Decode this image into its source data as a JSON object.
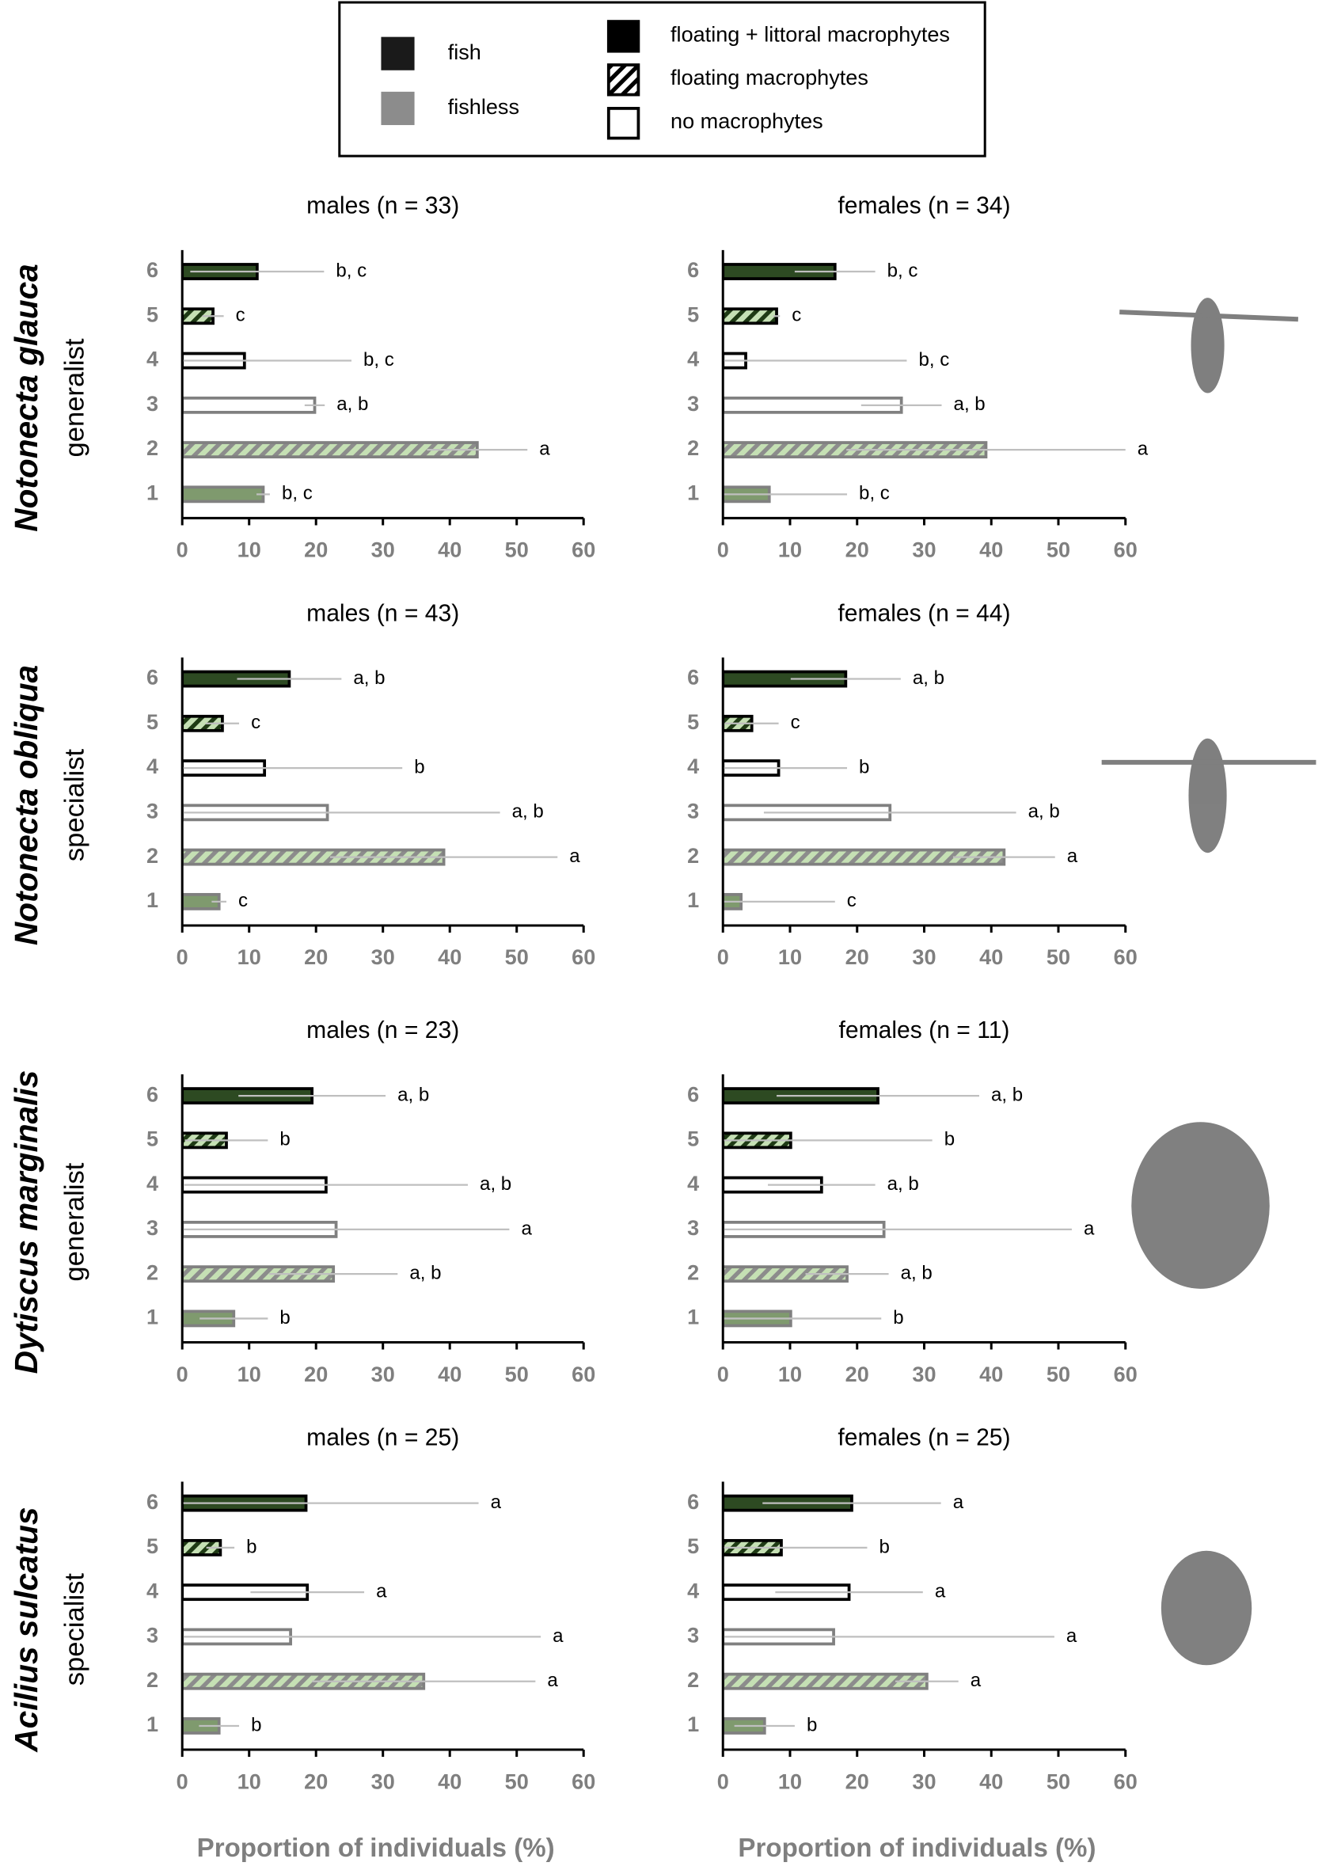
{
  "legend": {
    "predation": [
      {
        "label": "fish",
        "color": "#1a1a1a"
      },
      {
        "label": "fishless",
        "color": "#8c8c8c"
      }
    ],
    "habitat": [
      {
        "label": "floating + littoral macrophytes",
        "fill": "#000000"
      },
      {
        "label": "floating macrophytes",
        "fill": "#ffffff",
        "hatch": "#000000"
      },
      {
        "label": "no macrophytes",
        "fill": "#ffffff"
      }
    ]
  },
  "rows": [
    {
      "species": "Notonecta glauca",
      "guild": "generalist"
    },
    {
      "species": "Notonecta obliqua",
      "guild": "specialist"
    },
    {
      "species": "Dytiscus marginalis",
      "guild": "generalist"
    },
    {
      "species": "Acilius sulcatus",
      "guild": "specialist"
    }
  ],
  "category_styles": [
    {
      "fill": "#7f9a6e",
      "stroke": "#808080"
    },
    {
      "fill": "#c5e0b4",
      "stroke": "#808080",
      "hatch": "#8c8c8c"
    },
    {
      "fill": "#ffffff",
      "stroke": "#808080"
    },
    {
      "fill": "#ffffff",
      "stroke": "#000000"
    },
    {
      "fill": "#c5e0b4",
      "stroke": "#000000",
      "hatch": "#1e3a14"
    },
    {
      "fill": "#2d4a22",
      "stroke": "#000000"
    }
  ],
  "error_color": "#bfbfbf",
  "chart_data": [
    {
      "type": "bar",
      "title": "males (n = 33)",
      "categories": [
        "1",
        "2",
        "3",
        "4",
        "5",
        "6"
      ],
      "values": [
        12.1,
        44.1,
        19.8,
        9.3,
        4.6,
        11.2
      ],
      "errors": [
        1,
        7.5,
        1.5,
        16,
        1.6,
        10
      ],
      "annotations": [
        "b, c",
        "a",
        "a, b",
        "b, c",
        "c",
        "b, c"
      ],
      "xlim": [
        0,
        60
      ],
      "xticks": [
        0,
        10,
        20,
        30,
        40,
        50,
        60
      ]
    },
    {
      "type": "bar",
      "title": "females (n = 34)",
      "categories": [
        "1",
        "2",
        "3",
        "4",
        "5",
        "6"
      ],
      "values": [
        6.9,
        39.2,
        26.6,
        3.4,
        8.0,
        16.7
      ],
      "errors": [
        11.6,
        20.8,
        6,
        24,
        0.5,
        6
      ],
      "annotations": [
        "b, c",
        "a",
        "a, b",
        "b, c",
        "c",
        "b, c"
      ],
      "xlim": [
        0,
        60
      ],
      "xticks": [
        0,
        10,
        20,
        30,
        40,
        50,
        60
      ]
    },
    {
      "type": "bar",
      "title": "males (n = 43)",
      "categories": [
        "1",
        "2",
        "3",
        "4",
        "5",
        "6"
      ],
      "values": [
        5.5,
        39.1,
        21.7,
        12.3,
        6.0,
        16.0
      ],
      "errors": [
        1.1,
        17,
        25.8,
        20.6,
        2.5,
        7.8
      ],
      "annotations": [
        "c",
        "a",
        "a, b",
        "b",
        "c",
        "a, b"
      ],
      "xlim": [
        0,
        60
      ],
      "xticks": [
        0,
        10,
        20,
        30,
        40,
        50,
        60
      ]
    },
    {
      "type": "bar",
      "title": "females (n = 44)",
      "categories": [
        "1",
        "2",
        "3",
        "4",
        "5",
        "6"
      ],
      "values": [
        2.7,
        41.9,
        24.9,
        8.3,
        4.3,
        18.3
      ],
      "errors": [
        14,
        7.6,
        18.8,
        10.2,
        4,
        8.2
      ],
      "annotations": [
        "c",
        "a",
        "a, b",
        "b",
        "c",
        "a, b"
      ],
      "xlim": [
        0,
        60
      ],
      "xticks": [
        0,
        10,
        20,
        30,
        40,
        50,
        60
      ]
    },
    {
      "type": "bar",
      "title": "males (n = 23)",
      "categories": [
        "1",
        "2",
        "3",
        "4",
        "5",
        "6"
      ],
      "values": [
        7.7,
        22.6,
        23.0,
        21.5,
        6.6,
        19.4
      ],
      "errors": [
        5.1,
        9.6,
        25.9,
        21.2,
        6.2,
        11
      ],
      "annotations": [
        "b",
        "a, b",
        "a",
        "a, b",
        "b",
        "a, b"
      ],
      "xlim": [
        0,
        60
      ],
      "xticks": [
        0,
        10,
        20,
        30,
        40,
        50,
        60
      ]
    },
    {
      "type": "bar",
      "title": "females (n = 11)",
      "categories": [
        "1",
        "2",
        "3",
        "4",
        "5",
        "6"
      ],
      "values": [
        10.1,
        18.5,
        24.0,
        14.7,
        10.1,
        23.1
      ],
      "errors": [
        13.5,
        6.2,
        28,
        8,
        21.1,
        15.1
      ],
      "annotations": [
        "b",
        "a, b",
        "a",
        "a, b",
        "b",
        "a, b"
      ],
      "xlim": [
        0,
        60
      ],
      "xticks": [
        0,
        10,
        20,
        30,
        40,
        50,
        60
      ]
    },
    {
      "type": "bar",
      "title": "males (n = 25)",
      "categories": [
        "1",
        "2",
        "3",
        "4",
        "5",
        "6"
      ],
      "values": [
        5.5,
        36.1,
        16.2,
        18.7,
        5.7,
        18.5
      ],
      "errors": [
        3,
        16.7,
        37.4,
        8.5,
        2.1,
        25.8
      ],
      "annotations": [
        "b",
        "a",
        "a",
        "a",
        "b",
        "a"
      ],
      "xlim": [
        0,
        60
      ],
      "xticks": [
        0,
        10,
        20,
        30,
        40,
        50,
        60
      ],
      "xlabel": "Proportion of individuals (%)"
    },
    {
      "type": "bar",
      "title": "females (n = 25)",
      "categories": [
        "1",
        "2",
        "3",
        "4",
        "5",
        "6"
      ],
      "values": [
        6.2,
        30.4,
        16.5,
        18.8,
        8.7,
        19.2
      ],
      "errors": [
        4.5,
        4.7,
        32.9,
        11,
        12.8,
        13.3
      ],
      "annotations": [
        "b",
        "a",
        "a",
        "a",
        "b",
        "a"
      ],
      "xlim": [
        0,
        60
      ],
      "xticks": [
        0,
        10,
        20,
        30,
        40,
        50,
        60
      ],
      "xlabel": "Proportion of individuals (%)"
    }
  ]
}
